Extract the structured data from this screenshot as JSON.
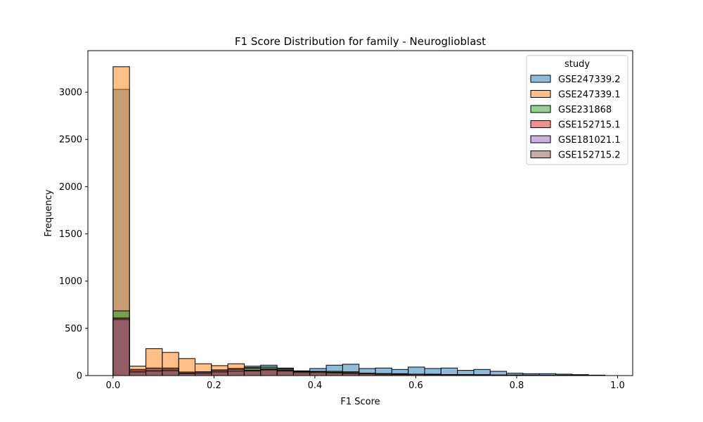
{
  "chart_data": {
    "type": "bar",
    "title": "F1 Score Distribution for family - Neuroglioblast",
    "xlabel": "F1 Score",
    "ylabel": "Frequency",
    "xlim": [
      -0.05,
      1.03
    ],
    "ylim": [
      0,
      3440
    ],
    "xticks": [
      0.0,
      0.2,
      0.4,
      0.6,
      0.8,
      1.0
    ],
    "xtick_labels": [
      "0.0",
      "0.2",
      "0.4",
      "0.6",
      "0.8",
      "1.0"
    ],
    "yticks": [
      0,
      500,
      1000,
      1500,
      2000,
      2500,
      3000
    ],
    "ytick_labels": [
      "0",
      "500",
      "1000",
      "1500",
      "2000",
      "2500",
      "3000"
    ],
    "bin_edges": [
      0.0,
      0.0325,
      0.065,
      0.0975,
      0.13,
      0.1625,
      0.195,
      0.2275,
      0.26,
      0.2925,
      0.325,
      0.3575,
      0.39,
      0.4225,
      0.455,
      0.4875,
      0.52,
      0.5525,
      0.585,
      0.6175,
      0.65,
      0.6825,
      0.715,
      0.7475,
      0.78,
      0.8125,
      0.845,
      0.8775,
      0.91,
      0.9425,
      0.975
    ],
    "grid": false,
    "legend": {
      "title": "study",
      "placement": "top-right"
    },
    "series": [
      {
        "name": "GSE247339.2",
        "color": "#1f77b4",
        "values": [
          3030,
          55,
          70,
          70,
          40,
          40,
          60,
          70,
          100,
          110,
          80,
          50,
          75,
          110,
          120,
          75,
          80,
          65,
          90,
          75,
          80,
          55,
          65,
          45,
          25,
          20,
          20,
          15,
          10,
          5
        ]
      },
      {
        "name": "GSE247339.1",
        "color": "#ff7f0e",
        "values": [
          3270,
          100,
          285,
          245,
          180,
          125,
          105,
          125,
          85,
          90,
          60,
          45,
          45,
          30,
          30,
          25,
          20,
          20,
          15,
          15,
          10,
          10,
          10,
          5,
          5,
          5,
          5,
          5,
          5,
          0
        ]
      },
      {
        "name": "GSE231868",
        "color": "#2ca02c",
        "values": [
          685,
          45,
          55,
          60,
          30,
          35,
          50,
          65,
          75,
          90,
          70,
          45,
          40,
          45,
          40,
          25,
          20,
          15,
          15,
          10,
          10,
          10,
          5,
          5,
          5,
          0,
          0,
          0,
          0,
          0
        ]
      },
      {
        "name": "GSE152715.1",
        "color": "#d62728",
        "values": [
          600,
          40,
          50,
          55,
          25,
          25,
          40,
          50,
          55,
          70,
          50,
          35,
          35,
          30,
          25,
          20,
          15,
          10,
          10,
          10,
          5,
          5,
          5,
          5,
          0,
          0,
          0,
          0,
          0,
          0
        ]
      },
      {
        "name": "GSE181021.1",
        "color": "#9467bd",
        "values": [
          590,
          35,
          45,
          50,
          20,
          20,
          35,
          45,
          50,
          60,
          45,
          30,
          30,
          25,
          20,
          15,
          10,
          10,
          10,
          5,
          5,
          5,
          5,
          0,
          0,
          0,
          0,
          0,
          0,
          0
        ]
      },
      {
        "name": "GSE152715.2",
        "color": "#8c564b",
        "values": [
          610,
          65,
          80,
          80,
          25,
          40,
          60,
          75,
          50,
          60,
          55,
          40,
          40,
          35,
          30,
          25,
          20,
          15,
          15,
          10,
          10,
          10,
          5,
          5,
          5,
          5,
          0,
          0,
          0,
          0
        ]
      }
    ]
  }
}
